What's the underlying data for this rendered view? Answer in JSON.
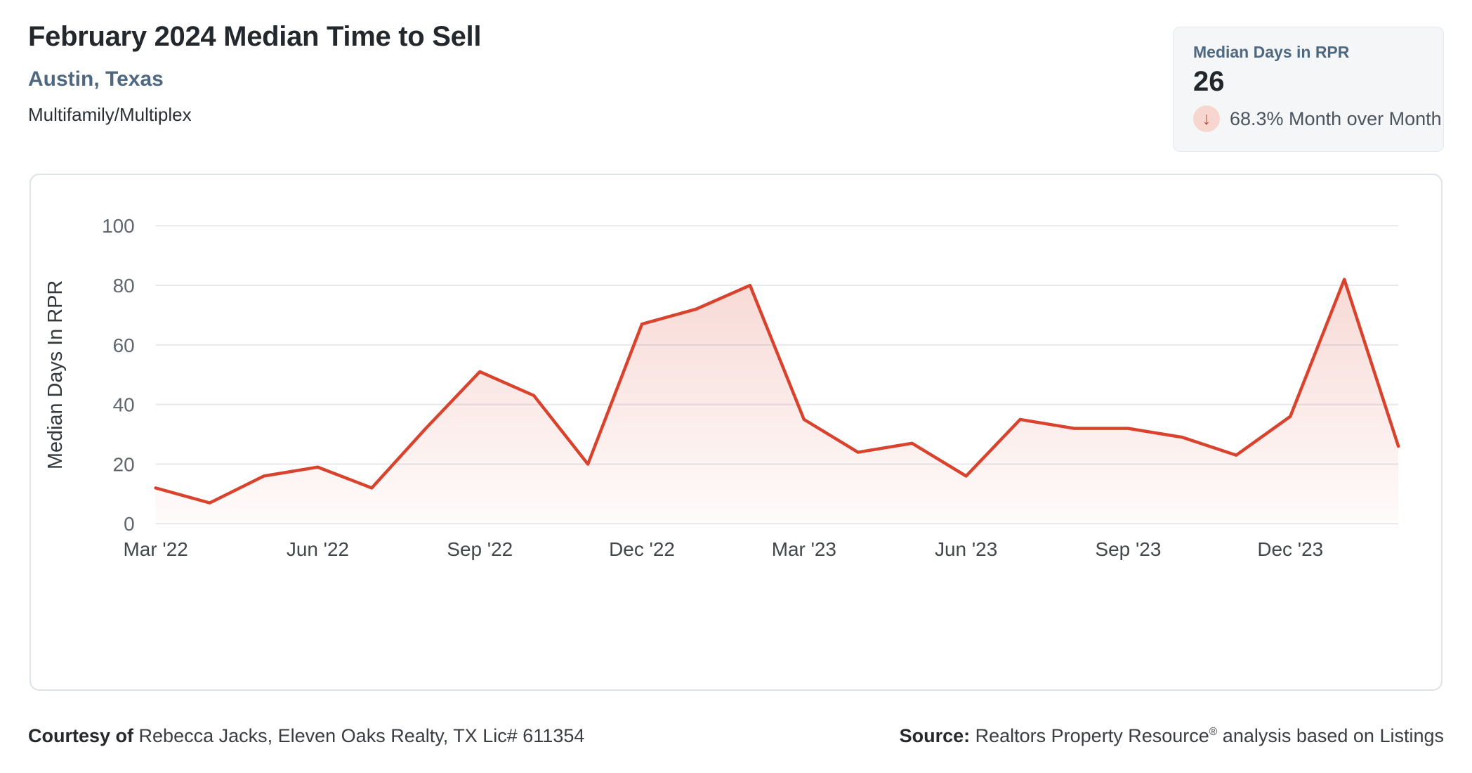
{
  "header": {
    "title": "February 2024 Median Time to Sell",
    "subtitle": "Austin, Texas",
    "property_type": "Multifamily/Multiplex"
  },
  "stat_card": {
    "label": "Median Days in RPR",
    "value": "26",
    "trend_direction": "down",
    "arrow_glyph": "↓",
    "trend_text": "68.3% Month over Month"
  },
  "footer": {
    "courtesy_label": "Courtesy of",
    "courtesy_text": " Rebecca Jacks, Eleven Oaks Realty, TX Lic# 611354",
    "source_label": "Source:",
    "source_text_before_reg": " Realtors Property Resource",
    "source_reg_mark": "®",
    "source_text_after_reg": " analysis based on Listings"
  },
  "colors": {
    "line": "#d9432e",
    "area_fill_base": "#d9432e",
    "accent_blue": "#4d6880",
    "trend_circle_bg": "#f7d6cf",
    "trend_arrow": "#c94631",
    "grid": "#e7e9ec",
    "y_tick_text": "#5f666d",
    "x_tick_text": "#43474b"
  },
  "chart_data": {
    "type": "line",
    "title": "February 2024 Median Time to Sell — Median Days in RPR",
    "x": [
      "Mar '22",
      "Apr '22",
      "May '22",
      "Jun '22",
      "Jul '22",
      "Aug '22",
      "Sep '22",
      "Oct '22",
      "Nov '22",
      "Dec '22",
      "Jan '23",
      "Feb '23",
      "Mar '23",
      "Apr '23",
      "May '23",
      "Jun '23",
      "Jul '23",
      "Aug '23",
      "Sep '23",
      "Oct '23",
      "Nov '23",
      "Dec '23",
      "Jan '24",
      "Feb '24"
    ],
    "values": [
      12,
      7,
      16,
      19,
      12,
      32,
      51,
      43,
      20,
      67,
      72,
      80,
      35,
      24,
      27,
      16,
      35,
      32,
      32,
      29,
      23,
      36,
      82,
      26
    ],
    "xlabel": "",
    "ylabel": "Median Days In RPR",
    "ylim": [
      0,
      100
    ],
    "yticks": [
      0,
      20,
      40,
      60,
      80,
      100
    ],
    "xtick_labels": [
      "Mar '22",
      "Jun '22",
      "Sep '22",
      "Dec '22",
      "Mar '23",
      "Jun '23",
      "Sep '23",
      "Dec '23"
    ],
    "xtick_indices": [
      0,
      3,
      6,
      9,
      12,
      15,
      18,
      21
    ],
    "grid": "horizontal-only",
    "legend": "none",
    "area_fill": true
  }
}
